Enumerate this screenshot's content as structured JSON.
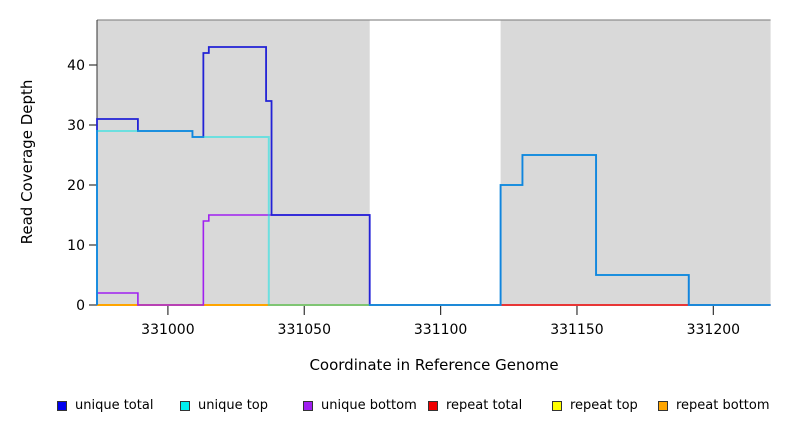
{
  "chart_data": {
    "type": "line",
    "subtype": "step-coverage",
    "title": "",
    "xlabel": "Coordinate in Reference Genome",
    "ylabel": "Read Coverage Depth",
    "xlim": [
      330974,
      331221
    ],
    "ylim": [
      0,
      47.5
    ],
    "x_ticks": [
      331000,
      331050,
      331100,
      331150,
      331200
    ],
    "y_ticks": [
      0,
      10,
      20,
      30,
      40
    ],
    "grid": false,
    "background_color": "#ffffff",
    "masked_region_color": "#d9d9d9",
    "masked_regions": [
      [
        330974,
        331074
      ],
      [
        331122,
        331221
      ]
    ],
    "gap_region": [
      331074,
      331122
    ],
    "top_border_color": "#8f8f8f",
    "axis_color": "#333333",
    "series": [
      {
        "name": "repeat total",
        "color": "#ee0000",
        "width": 1.4,
        "opacity": 1,
        "steps": [
          [
            330974,
            331221,
            0
          ]
        ]
      },
      {
        "name": "repeat top",
        "color": "#ffff00",
        "width": 1.4,
        "opacity": 1,
        "steps": [
          [
            330974,
            331074,
            0
          ]
        ]
      },
      {
        "name": "repeat bottom",
        "color": "#ffa500",
        "width": 2.0,
        "opacity": 1,
        "steps": [
          [
            330974,
            331074,
            0
          ]
        ]
      },
      {
        "name": "unique bottom",
        "color": "#a020f0",
        "width": 1.6,
        "opacity": 1,
        "steps": [
          [
            330974,
            330989,
            2
          ],
          [
            330989,
            331013,
            0
          ],
          [
            331013,
            331015,
            14
          ],
          [
            331015,
            331074,
            15
          ]
        ]
      },
      {
        "name": "unique total",
        "color": "#2222d6",
        "width": 1.8,
        "opacity": 1,
        "steps": [
          [
            330974,
            330989,
            31
          ],
          [
            330989,
            331009,
            29
          ],
          [
            331009,
            331013,
            28
          ],
          [
            331013,
            331015,
            42
          ],
          [
            331015,
            331036,
            43
          ],
          [
            331036,
            331038,
            34
          ],
          [
            331038,
            331074,
            15
          ],
          [
            331074,
            331122,
            0
          ],
          [
            331122,
            331130,
            20
          ],
          [
            331130,
            331157,
            25
          ],
          [
            331157,
            331191,
            5
          ],
          [
            331191,
            331221,
            0
          ]
        ]
      },
      {
        "name": "unique top",
        "color": "#00e5e5",
        "width": 2.0,
        "opacity": 0.5,
        "steps": [
          [
            330974,
            331009,
            29
          ],
          [
            331009,
            331037,
            28
          ],
          [
            331037,
            331122,
            0
          ],
          [
            331122,
            331130,
            20
          ],
          [
            331130,
            331157,
            25
          ],
          [
            331157,
            331191,
            5
          ],
          [
            331191,
            331221,
            0
          ]
        ]
      }
    ],
    "legend": [
      {
        "label": "unique total",
        "color": "#0000ee"
      },
      {
        "label": "unique top",
        "color": "#00eeee"
      },
      {
        "label": "unique bottom",
        "color": "#a020f0"
      },
      {
        "label": "repeat total",
        "color": "#ee0000"
      },
      {
        "label": "repeat top",
        "color": "#ffff00"
      },
      {
        "label": "repeat bottom",
        "color": "#ffa500"
      }
    ]
  }
}
